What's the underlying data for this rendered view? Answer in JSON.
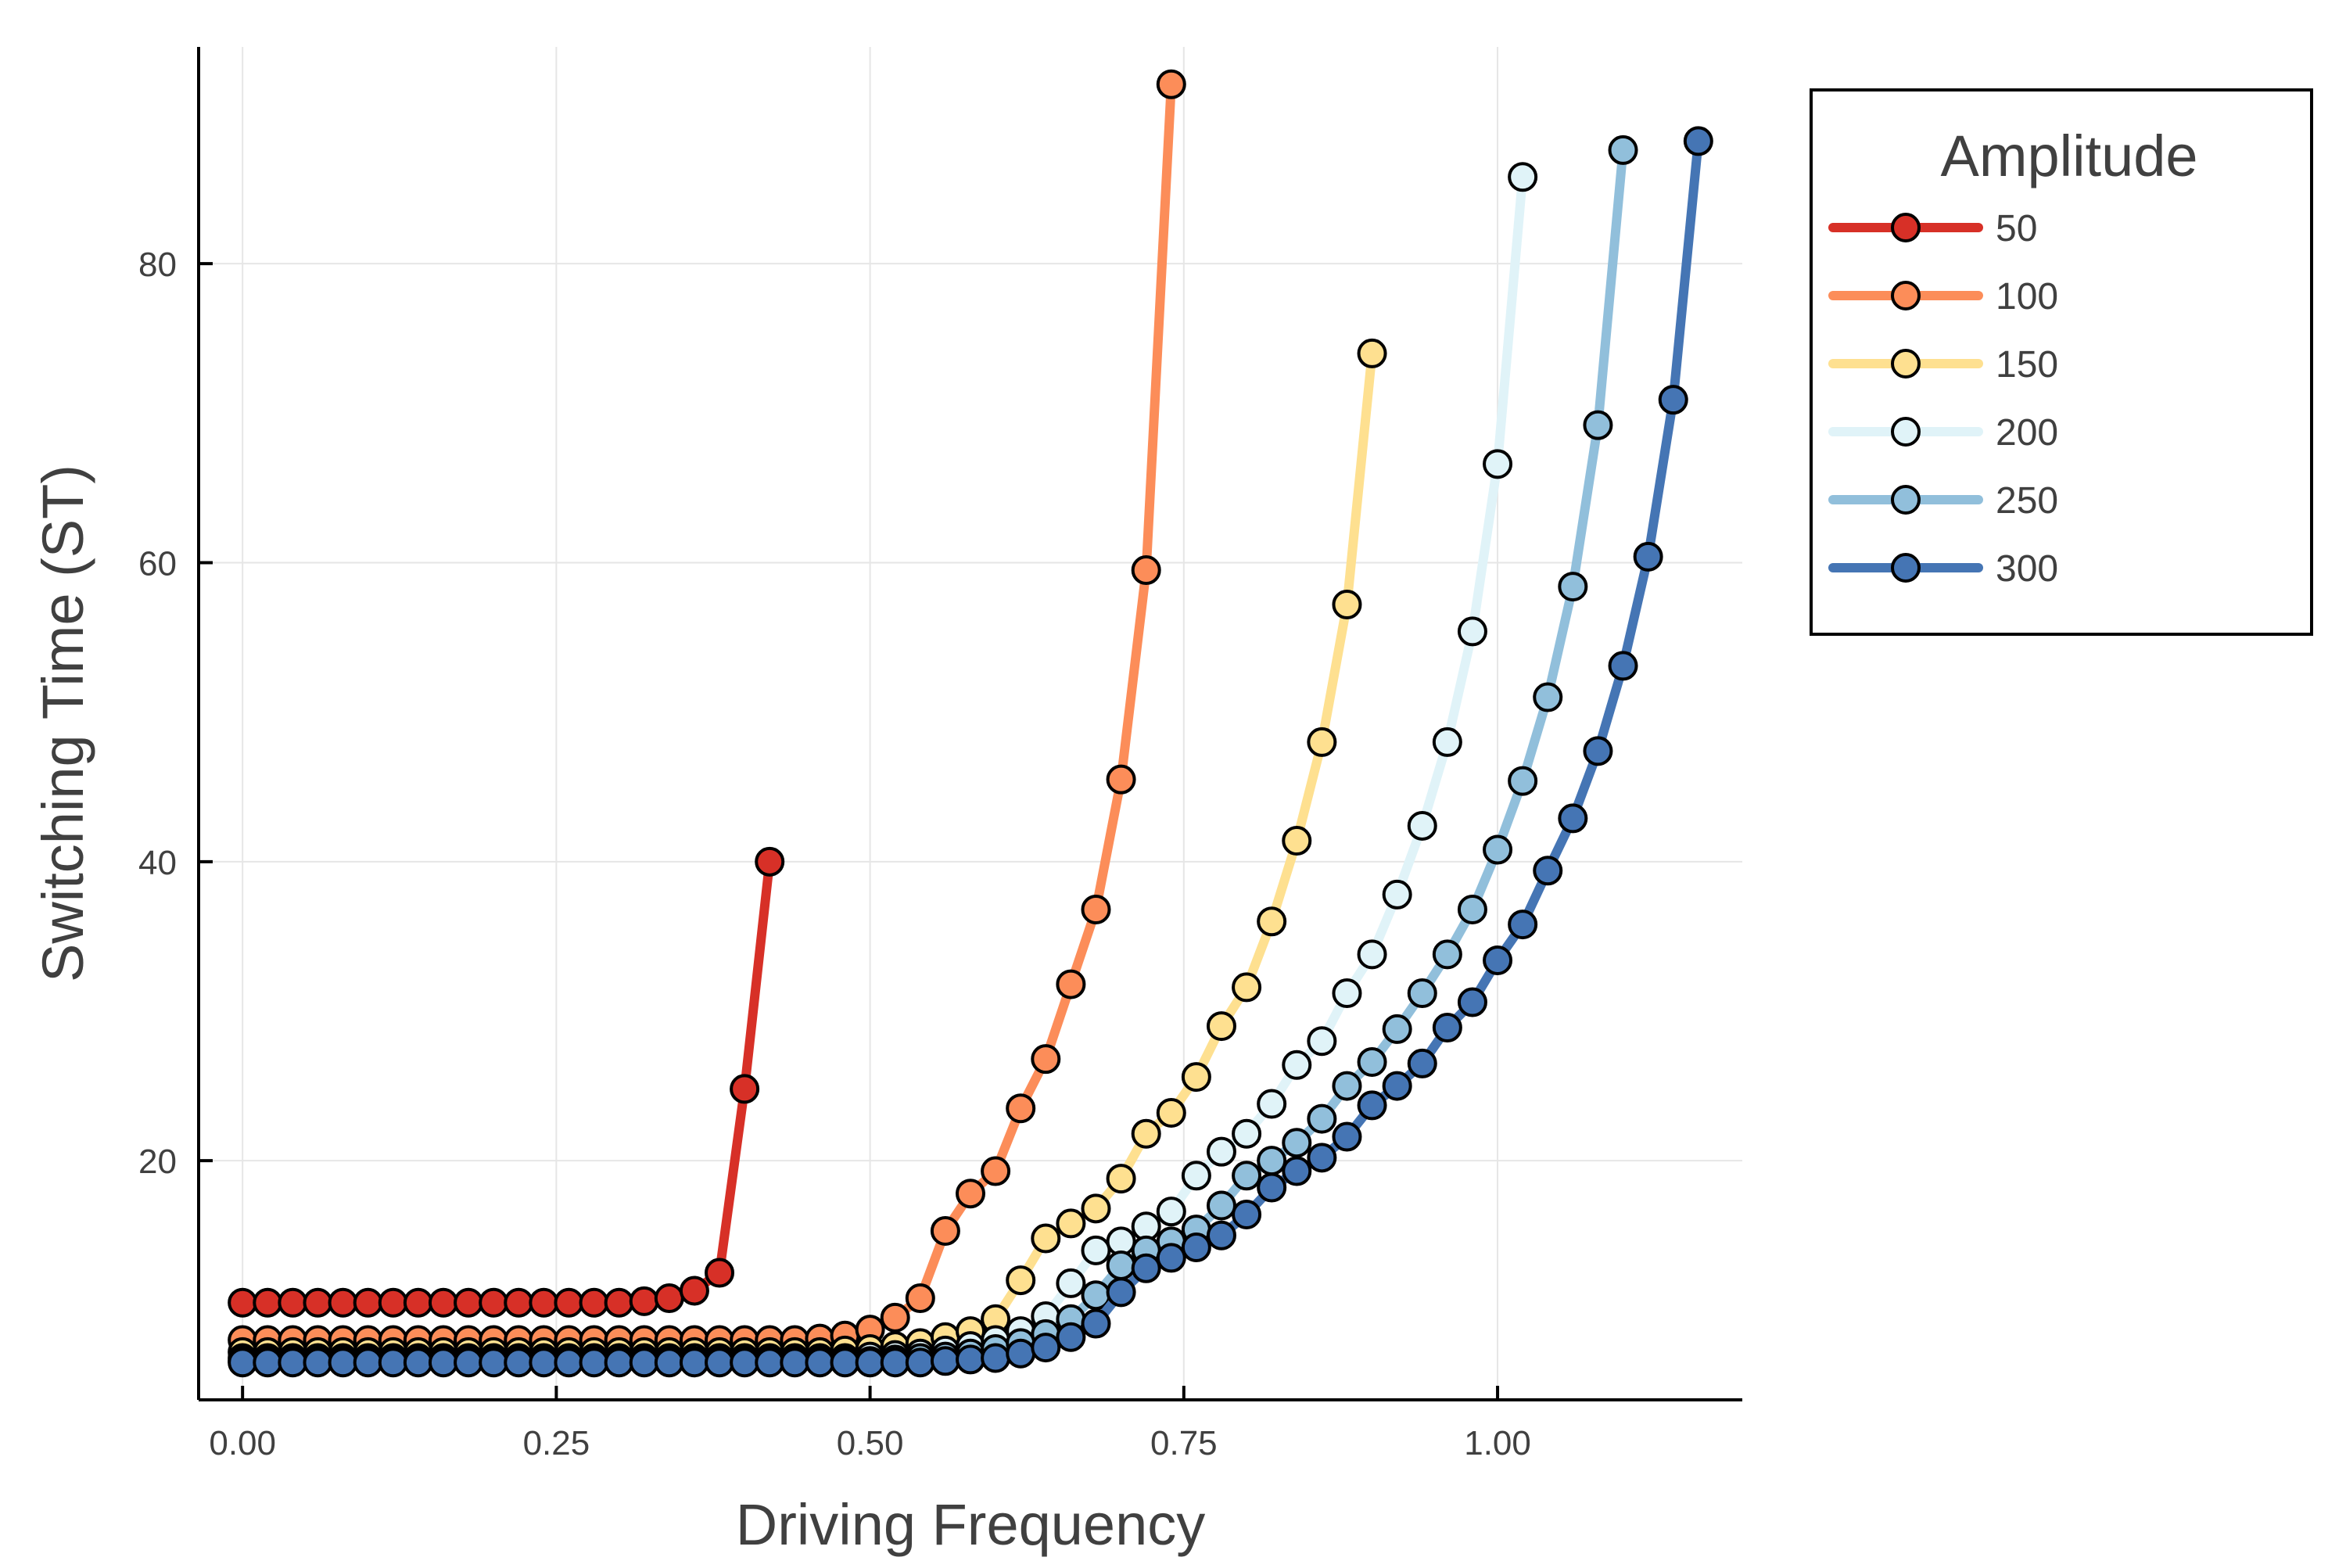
{
  "chart_data": {
    "type": "line",
    "title": "",
    "xlabel": "Driving Frequency",
    "ylabel": "Switching Time (ST)",
    "xlim": [
      -0.035,
      1.195
    ],
    "ylim": [
      4.0,
      94.5
    ],
    "xticks": [
      0.0,
      0.25,
      0.5,
      0.75,
      1.0
    ],
    "xtick_labels": [
      "0.00",
      "0.25",
      "0.50",
      "0.75",
      "1.00"
    ],
    "yticks": [
      20,
      40,
      60,
      80
    ],
    "ytick_labels": [
      "20",
      "40",
      "60",
      "80"
    ],
    "grid": true,
    "legend_title": "Amplitude",
    "legend_position": "outside-right-top",
    "series": [
      {
        "name": "50",
        "color": "#d73027",
        "x": [
          0.0,
          0.02,
          0.04,
          0.06,
          0.08,
          0.1,
          0.12,
          0.14,
          0.16,
          0.18,
          0.2,
          0.22,
          0.24,
          0.26,
          0.28,
          0.3,
          0.32,
          0.34,
          0.36,
          0.38,
          0.4,
          0.42
        ],
        "y": [
          10.5,
          10.5,
          10.5,
          10.5,
          10.5,
          10.5,
          10.5,
          10.5,
          10.5,
          10.5,
          10.5,
          10.5,
          10.5,
          10.5,
          10.5,
          10.5,
          10.6,
          10.8,
          11.3,
          12.5,
          24.8,
          40.0
        ]
      },
      {
        "name": "100",
        "color": "#fc8d59",
        "x": [
          0.0,
          0.02,
          0.04,
          0.06,
          0.08,
          0.1,
          0.12,
          0.14,
          0.16,
          0.18,
          0.2,
          0.22,
          0.24,
          0.26,
          0.28,
          0.3,
          0.32,
          0.34,
          0.36,
          0.38,
          0.4,
          0.42,
          0.44,
          0.46,
          0.48,
          0.5,
          0.52,
          0.54,
          0.56,
          0.58,
          0.6,
          0.62,
          0.64,
          0.66,
          0.68,
          0.7,
          0.72,
          0.74
        ],
        "y": [
          8.0,
          8.0,
          8.0,
          8.0,
          8.0,
          8.0,
          8.0,
          8.0,
          8.0,
          8.0,
          8.0,
          8.0,
          8.0,
          8.0,
          8.0,
          8.0,
          8.0,
          8.0,
          8.0,
          8.0,
          8.0,
          8.0,
          8.0,
          8.1,
          8.3,
          8.7,
          9.5,
          10.8,
          15.3,
          17.8,
          19.3,
          23.5,
          26.8,
          31.8,
          36.8,
          45.5,
          59.5,
          92.0
        ]
      },
      {
        "name": "150",
        "color": "#fee090",
        "x": [
          0.0,
          0.02,
          0.04,
          0.06,
          0.08,
          0.1,
          0.12,
          0.14,
          0.16,
          0.18,
          0.2,
          0.22,
          0.24,
          0.26,
          0.28,
          0.3,
          0.32,
          0.34,
          0.36,
          0.38,
          0.4,
          0.42,
          0.44,
          0.46,
          0.48,
          0.5,
          0.52,
          0.54,
          0.56,
          0.58,
          0.6,
          0.62,
          0.64,
          0.66,
          0.68,
          0.7,
          0.72,
          0.74,
          0.76,
          0.78,
          0.8,
          0.82,
          0.84,
          0.86,
          0.88,
          0.9
        ],
        "y": [
          7.2,
          7.2,
          7.2,
          7.2,
          7.2,
          7.2,
          7.2,
          7.2,
          7.2,
          7.2,
          7.2,
          7.2,
          7.2,
          7.2,
          7.2,
          7.2,
          7.2,
          7.2,
          7.2,
          7.2,
          7.2,
          7.2,
          7.2,
          7.2,
          7.3,
          7.4,
          7.6,
          7.8,
          8.2,
          8.6,
          9.4,
          12.0,
          14.8,
          15.8,
          16.8,
          18.8,
          21.8,
          23.2,
          25.6,
          29.0,
          31.6,
          36.0,
          41.4,
          48.0,
          57.2,
          74.0
        ]
      },
      {
        "name": "200",
        "color": "#e0f3f8",
        "x": [
          0.0,
          0.02,
          0.04,
          0.06,
          0.08,
          0.1,
          0.12,
          0.14,
          0.16,
          0.18,
          0.2,
          0.22,
          0.24,
          0.26,
          0.28,
          0.3,
          0.32,
          0.34,
          0.36,
          0.38,
          0.4,
          0.42,
          0.44,
          0.46,
          0.48,
          0.5,
          0.52,
          0.54,
          0.56,
          0.58,
          0.6,
          0.62,
          0.64,
          0.66,
          0.68,
          0.7,
          0.72,
          0.74,
          0.76,
          0.78,
          0.8,
          0.82,
          0.84,
          0.86,
          0.88,
          0.9,
          0.92,
          0.94,
          0.96,
          0.98,
          1.0,
          1.02
        ],
        "y": [
          6.8,
          6.8,
          6.8,
          6.8,
          6.8,
          6.8,
          6.8,
          6.8,
          6.8,
          6.8,
          6.8,
          6.8,
          6.8,
          6.8,
          6.8,
          6.8,
          6.8,
          6.8,
          6.8,
          6.8,
          6.8,
          6.8,
          6.8,
          6.8,
          6.8,
          6.9,
          7.0,
          7.1,
          7.3,
          7.6,
          8.0,
          8.6,
          9.6,
          11.8,
          14.0,
          14.6,
          15.6,
          16.6,
          19.0,
          20.6,
          21.8,
          23.8,
          26.4,
          28.0,
          31.2,
          33.8,
          37.8,
          42.4,
          48.0,
          55.4,
          66.6,
          85.8
        ]
      },
      {
        "name": "250",
        "color": "#91bfdb",
        "x": [
          0.0,
          0.02,
          0.04,
          0.06,
          0.08,
          0.1,
          0.12,
          0.14,
          0.16,
          0.18,
          0.2,
          0.22,
          0.24,
          0.26,
          0.28,
          0.3,
          0.32,
          0.34,
          0.36,
          0.38,
          0.4,
          0.42,
          0.44,
          0.46,
          0.48,
          0.5,
          0.52,
          0.54,
          0.56,
          0.58,
          0.6,
          0.62,
          0.64,
          0.66,
          0.68,
          0.7,
          0.72,
          0.74,
          0.76,
          0.78,
          0.8,
          0.82,
          0.84,
          0.86,
          0.88,
          0.9,
          0.92,
          0.94,
          0.96,
          0.98,
          1.0,
          1.02,
          1.04,
          1.06,
          1.08,
          1.1
        ],
        "y": [
          6.6,
          6.6,
          6.6,
          6.6,
          6.6,
          6.6,
          6.6,
          6.6,
          6.6,
          6.6,
          6.6,
          6.6,
          6.6,
          6.6,
          6.6,
          6.6,
          6.6,
          6.6,
          6.6,
          6.6,
          6.6,
          6.6,
          6.6,
          6.6,
          6.6,
          6.6,
          6.7,
          6.8,
          6.9,
          7.1,
          7.4,
          7.8,
          8.4,
          9.4,
          11.0,
          13.0,
          14.0,
          14.6,
          15.4,
          17.0,
          19.0,
          20.0,
          21.2,
          22.8,
          25.0,
          26.6,
          28.8,
          31.2,
          33.8,
          36.8,
          40.8,
          45.4,
          51.0,
          58.4,
          69.2,
          87.6
        ]
      },
      {
        "name": "300",
        "color": "#4575b4",
        "x": [
          0.0,
          0.02,
          0.04,
          0.06,
          0.08,
          0.1,
          0.12,
          0.14,
          0.16,
          0.18,
          0.2,
          0.22,
          0.24,
          0.26,
          0.28,
          0.3,
          0.32,
          0.34,
          0.36,
          0.38,
          0.4,
          0.42,
          0.44,
          0.46,
          0.48,
          0.5,
          0.52,
          0.54,
          0.56,
          0.58,
          0.6,
          0.62,
          0.64,
          0.66,
          0.68,
          0.7,
          0.72,
          0.74,
          0.76,
          0.78,
          0.8,
          0.82,
          0.84,
          0.86,
          0.88,
          0.9,
          0.92,
          0.94,
          0.96,
          0.98,
          1.0,
          1.02,
          1.04,
          1.06,
          1.08,
          1.1,
          1.12,
          1.14,
          1.16
        ],
        "y": [
          6.5,
          6.5,
          6.5,
          6.5,
          6.5,
          6.5,
          6.5,
          6.5,
          6.5,
          6.5,
          6.5,
          6.5,
          6.5,
          6.5,
          6.5,
          6.5,
          6.5,
          6.5,
          6.5,
          6.5,
          6.5,
          6.5,
          6.5,
          6.5,
          6.5,
          6.5,
          6.5,
          6.5,
          6.6,
          6.7,
          6.8,
          7.1,
          7.5,
          8.2,
          9.1,
          11.2,
          12.8,
          13.5,
          14.2,
          15.0,
          16.4,
          18.2,
          19.3,
          20.2,
          21.6,
          23.7,
          25.0,
          26.5,
          28.9,
          30.6,
          33.4,
          35.8,
          39.4,
          42.9,
          47.4,
          53.1,
          60.4,
          70.9,
          88.2
        ]
      }
    ]
  }
}
